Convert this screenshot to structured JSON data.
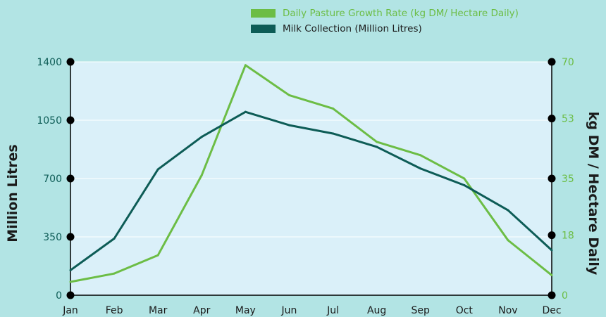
{
  "colors": {
    "background": "#b2e4e4",
    "plot_area": "#daf0f9",
    "pasture": "#6cbd45",
    "milk": "#0d5c56",
    "axis": "#000000",
    "left_tick_text": "#0d5c56"
  },
  "chart_data": {
    "type": "line",
    "categories": [
      "Jan",
      "Feb",
      "Mar",
      "Apr",
      "May",
      "Jun",
      "Jul",
      "Aug",
      "Sep",
      "Oct",
      "Nov",
      "Dec"
    ],
    "series": [
      {
        "name": "Daily Pasture Growth Rate (kg DM/ Hectare Daily)",
        "axis": "right",
        "values": [
          4,
          6.5,
          12,
          36,
          69,
          60,
          56,
          46,
          42,
          35,
          16.5,
          6
        ]
      },
      {
        "name": "Milk Collection (Million Litres)",
        "axis": "left",
        "values": [
          150,
          340,
          755,
          950,
          1100,
          1020,
          970,
          890,
          760,
          660,
          510,
          270
        ]
      }
    ],
    "ylabel_left": "Million Litres",
    "ylabel_right": "kg DM / Hectare Daily",
    "ylim_left": [
      0,
      1400
    ],
    "ylim_right": [
      0,
      70
    ],
    "yticks_left": [
      0,
      350,
      700,
      1050,
      1400
    ],
    "yticks_right": [
      0,
      18,
      35,
      53,
      70
    ],
    "legend_position": "top-right",
    "grid": false
  }
}
